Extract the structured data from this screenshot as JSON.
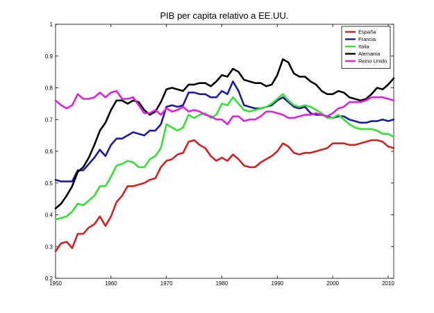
{
  "chart_data": {
    "type": "line",
    "title": "PIB per capita relativo a EE.UU.",
    "xlabel": "",
    "ylabel": "",
    "xlim": [
      1950,
      2011
    ],
    "ylim": [
      0.2,
      1
    ],
    "x_ticks": [
      1950,
      1960,
      1970,
      1980,
      1990,
      2000,
      2010
    ],
    "y_ticks": [
      0.2,
      0.3,
      0.4,
      0.5,
      0.6,
      0.7,
      0.8,
      0.9,
      1
    ],
    "y_tick_labels": [
      "0.2",
      "0.3",
      "0.4",
      "0.5",
      "0.6",
      "0.7",
      "0.8",
      "0.9",
      "1"
    ],
    "grid": false,
    "legend_position": "top-right",
    "x": [
      1950,
      1951,
      1952,
      1953,
      1954,
      1955,
      1956,
      1957,
      1958,
      1959,
      1960,
      1961,
      1962,
      1963,
      1964,
      1965,
      1966,
      1967,
      1968,
      1969,
      1970,
      1971,
      1972,
      1973,
      1974,
      1975,
      1976,
      1977,
      1978,
      1979,
      1980,
      1981,
      1982,
      1983,
      1984,
      1985,
      1986,
      1987,
      1988,
      1989,
      1990,
      1991,
      1992,
      1993,
      1994,
      1995,
      1996,
      1997,
      1998,
      1999,
      2000,
      2001,
      2002,
      2003,
      2004,
      2005,
      2006,
      2007,
      2008,
      2009,
      2010,
      2011
    ],
    "series": [
      {
        "name": "España",
        "color": "#d42020",
        "values": [
          0.285,
          0.31,
          0.315,
          0.295,
          0.34,
          0.34,
          0.36,
          0.37,
          0.395,
          0.365,
          0.395,
          0.44,
          0.46,
          0.49,
          0.49,
          0.495,
          0.5,
          0.51,
          0.515,
          0.55,
          0.57,
          0.575,
          0.59,
          0.595,
          0.63,
          0.635,
          0.62,
          0.61,
          0.585,
          0.57,
          0.58,
          0.57,
          0.59,
          0.575,
          0.555,
          0.55,
          0.55,
          0.565,
          0.575,
          0.585,
          0.6,
          0.625,
          0.615,
          0.595,
          0.59,
          0.595,
          0.595,
          0.6,
          0.605,
          0.61,
          0.625,
          0.625,
          0.625,
          0.62,
          0.62,
          0.625,
          0.63,
          0.635,
          0.635,
          0.63,
          0.615,
          0.61
        ]
      },
      {
        "name": "Francia",
        "color": "#1a1aa8",
        "values": [
          0.51,
          0.505,
          0.505,
          0.505,
          0.54,
          0.54,
          0.56,
          0.58,
          0.605,
          0.585,
          0.62,
          0.64,
          0.64,
          0.65,
          0.66,
          0.655,
          0.65,
          0.665,
          0.665,
          0.685,
          0.74,
          0.745,
          0.74,
          0.745,
          0.785,
          0.785,
          0.78,
          0.78,
          0.77,
          0.77,
          0.79,
          0.78,
          0.82,
          0.79,
          0.745,
          0.74,
          0.735,
          0.735,
          0.74,
          0.745,
          0.76,
          0.77,
          0.755,
          0.74,
          0.735,
          0.74,
          0.72,
          0.715,
          0.715,
          0.71,
          0.705,
          0.71,
          0.71,
          0.7,
          0.695,
          0.69,
          0.69,
          0.695,
          0.695,
          0.7,
          0.695,
          0.7
        ]
      },
      {
        "name": "Italia",
        "color": "#33e033",
        "values": [
          0.385,
          0.39,
          0.395,
          0.41,
          0.435,
          0.43,
          0.445,
          0.46,
          0.49,
          0.49,
          0.52,
          0.555,
          0.56,
          0.57,
          0.565,
          0.55,
          0.55,
          0.575,
          0.585,
          0.61,
          0.685,
          0.675,
          0.665,
          0.675,
          0.715,
          0.705,
          0.715,
          0.72,
          0.705,
          0.715,
          0.75,
          0.745,
          0.77,
          0.75,
          0.73,
          0.725,
          0.73,
          0.735,
          0.74,
          0.75,
          0.765,
          0.78,
          0.76,
          0.745,
          0.74,
          0.745,
          0.74,
          0.73,
          0.72,
          0.705,
          0.705,
          0.715,
          0.7,
          0.685,
          0.675,
          0.67,
          0.67,
          0.67,
          0.665,
          0.655,
          0.655,
          0.645
        ]
      },
      {
        "name": "Alemania",
        "color": "#000000",
        "values": [
          0.42,
          0.435,
          0.46,
          0.49,
          0.535,
          0.55,
          0.58,
          0.62,
          0.665,
          0.69,
          0.73,
          0.76,
          0.76,
          0.75,
          0.76,
          0.755,
          0.73,
          0.715,
          0.725,
          0.755,
          0.795,
          0.8,
          0.795,
          0.79,
          0.81,
          0.81,
          0.815,
          0.815,
          0.805,
          0.82,
          0.84,
          0.835,
          0.86,
          0.85,
          0.825,
          0.82,
          0.815,
          0.815,
          0.805,
          0.81,
          0.84,
          0.89,
          0.88,
          0.845,
          0.835,
          0.835,
          0.82,
          0.81,
          0.79,
          0.78,
          0.78,
          0.79,
          0.785,
          0.77,
          0.765,
          0.76,
          0.765,
          0.78,
          0.8,
          0.795,
          0.81,
          0.83
        ]
      },
      {
        "name": "Reino Unido",
        "color": "#e020e0",
        "values": [
          0.76,
          0.745,
          0.735,
          0.745,
          0.78,
          0.765,
          0.765,
          0.77,
          0.785,
          0.77,
          0.785,
          0.79,
          0.765,
          0.765,
          0.77,
          0.745,
          0.72,
          0.72,
          0.73,
          0.715,
          0.735,
          0.725,
          0.73,
          0.74,
          0.725,
          0.73,
          0.725,
          0.715,
          0.71,
          0.7,
          0.7,
          0.685,
          0.71,
          0.71,
          0.695,
          0.7,
          0.7,
          0.71,
          0.725,
          0.725,
          0.72,
          0.715,
          0.705,
          0.705,
          0.71,
          0.715,
          0.715,
          0.72,
          0.715,
          0.71,
          0.72,
          0.735,
          0.74,
          0.755,
          0.755,
          0.755,
          0.76,
          0.77,
          0.77,
          0.77,
          0.765,
          0.76
        ]
      }
    ]
  }
}
